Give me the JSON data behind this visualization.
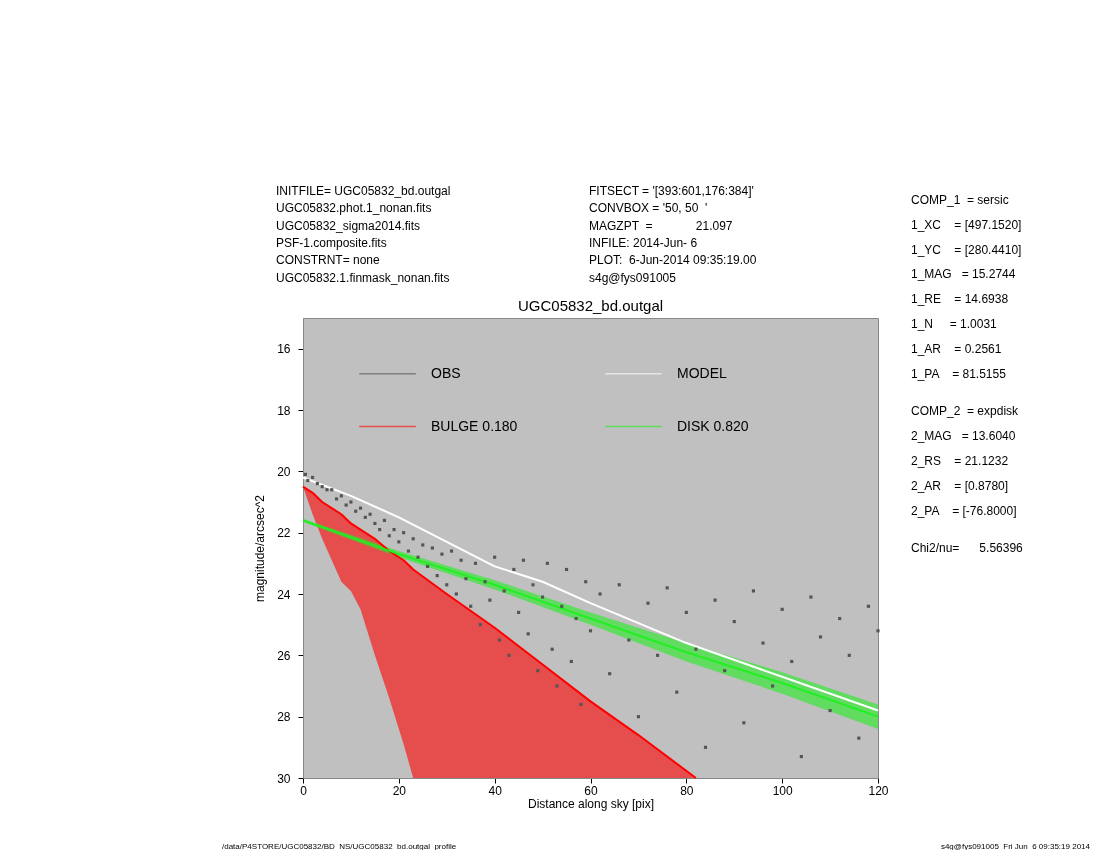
{
  "chart_data": {
    "type": "scatter",
    "title": "UGC05832_bd.outgal",
    "xlabel": "Distance along sky [pix]",
    "ylabel": "magnitude/arcsec^2",
    "xlim": [
      0,
      120
    ],
    "xticks": [
      0,
      20,
      40,
      60,
      80,
      100,
      120
    ],
    "ylim": [
      30,
      15
    ],
    "yticks": [
      16,
      18,
      20,
      22,
      24,
      26,
      28,
      30
    ],
    "grid": false,
    "legend": "top",
    "marker": "square",
    "series": [
      {
        "name": "OBS",
        "color": "#555555",
        "x": [
          0.5,
          1,
          2,
          3,
          4,
          5,
          6,
          7,
          8,
          9,
          10,
          11,
          12,
          13,
          14,
          15,
          16,
          17,
          18,
          19,
          20,
          21,
          22,
          23,
          24,
          25,
          26,
          27,
          28,
          29,
          30,
          31,
          32,
          33,
          34,
          35,
          36,
          37,
          38,
          39,
          40,
          41,
          42,
          43,
          44,
          45,
          46,
          47,
          48,
          49,
          50,
          51,
          52,
          53,
          54,
          55,
          56,
          57,
          58,
          59,
          60,
          62,
          64,
          66,
          68,
          70,
          72,
          74,
          76,
          78,
          80,
          82,
          84,
          86,
          88,
          90,
          92,
          94,
          96,
          98,
          100,
          102,
          104,
          106,
          108,
          110,
          112,
          114,
          116,
          118,
          120
        ],
        "values": [
          20.1,
          20.3,
          20.2,
          20.4,
          20.5,
          20.6,
          20.6,
          20.9,
          20.8,
          21.1,
          21.0,
          21.3,
          21.2,
          21.5,
          21.4,
          21.7,
          21.9,
          21.6,
          22.1,
          21.9,
          22.3,
          22.0,
          22.6,
          22.2,
          22.8,
          22.4,
          23.1,
          22.5,
          23.4,
          22.7,
          23.7,
          22.6,
          24.0,
          22.9,
          23.5,
          24.4,
          23.0,
          25.0,
          23.6,
          24.2,
          22.8,
          25.5,
          23.9,
          26.0,
          23.2,
          24.6,
          22.9,
          25.3,
          23.7,
          26.5,
          24.1,
          23.0,
          25.8,
          27.0,
          24.4,
          23.2,
          26.2,
          24.8,
          27.6,
          23.6,
          25.2,
          24.0,
          26.6,
          23.7,
          25.5,
          28.0,
          24.3,
          26.0,
          23.8,
          27.2,
          24.6,
          25.8,
          29.0,
          24.2,
          26.5,
          24.9,
          28.2,
          23.9,
          25.6,
          27.0,
          24.5,
          26.2,
          29.3,
          24.1,
          25.4,
          27.8,
          24.8,
          26.0,
          28.7,
          24.4,
          25.2
        ]
      },
      {
        "name": "MODEL",
        "type": "line",
        "marker": "none",
        "color": "#ffffff",
        "x": [
          0,
          10,
          20,
          30,
          40,
          50,
          60,
          80,
          100,
          120
        ],
        "values": [
          20.2,
          20.8,
          21.5,
          22.3,
          23.1,
          23.6,
          24.3,
          25.6,
          26.7,
          27.8
        ]
      },
      {
        "name": "BULGE  0.180",
        "type": "line",
        "marker": "none",
        "color": "#ff0000",
        "x": [
          0,
          2,
          4,
          6,
          8,
          10,
          12,
          15,
          18,
          21,
          23,
          30,
          40,
          50,
          60,
          70,
          82
        ],
        "values": [
          20.5,
          20.7,
          21.0,
          21.2,
          21.4,
          21.7,
          21.9,
          22.2,
          22.6,
          22.9,
          23.2,
          24.0,
          25.1,
          26.3,
          27.5,
          28.6,
          30.0
        ],
        "lower": [
          20.5,
          20.7,
          21.0,
          21.2,
          21.4,
          21.7,
          21.9,
          22.2,
          22.6,
          22.9,
          23.2,
          24.0,
          25.1,
          26.3,
          27.5,
          28.6,
          30.0
        ],
        "upper": [
          20.5,
          21.4,
          22.2,
          22.9,
          23.6,
          23.9,
          24.5,
          26.0,
          27.4,
          28.9,
          30.0,
          30.0,
          30.0,
          30.0,
          30.0,
          30.0,
          30.0
        ]
      },
      {
        "name": "DISK  0.820",
        "type": "line",
        "marker": "none",
        "color": "#22ee22",
        "x": [
          0,
          20,
          40,
          60,
          80,
          100,
          120
        ],
        "values": [
          21.6,
          22.7,
          23.7,
          24.8,
          25.9,
          26.9,
          28.0
        ],
        "lower": [
          21.55,
          22.6,
          23.55,
          24.6,
          25.6,
          26.55,
          27.6
        ],
        "upper": [
          21.65,
          22.8,
          23.85,
          25.0,
          26.2,
          27.25,
          28.4
        ]
      }
    ],
    "annotations": [
      "INITFILE= UGC05832_bd.outgal",
      "UGC05832.phot.1_nonan.fits",
      "UGC05832_sigma2014.fits",
      "PSF-1.composite.fits",
      "CONSTRNT= none",
      "UGC05832.1.finmask_nonan.fits",
      "FITSECT = '[393:601,176:384]'",
      "CONVBOX = '50, 50  '",
      "MAGZPT  =             21.097",
      "INFILE: 2014-Jun- 6",
      "PLOT:  6-Jun-2014 09:35:19.00",
      "s4g@fys091005",
      "COMP_1  = sersic",
      "1_XC    = [497.1520]",
      "1_YC    = [280.4410]",
      "1_MAG   = 15.2744",
      "1_RE    = 14.6938",
      "1_N     = 1.0031",
      "1_AR    = 0.2561",
      "1_PA    = 81.5155",
      "COMP_2  = expdisk",
      "2_MAG   = 13.6040",
      "2_RS    = 21.1232",
      "2_AR    = [0.8780]",
      "2_PA    = [-76.8000]",
      "Chi2/nu=      5.56396",
      "/data/P4STORE/UGC05832/BD_NS/UGC05832_bd.outgal_profile",
      "s4g@fys091005  Fri Jun  6 09:35:19 2014"
    ]
  }
}
